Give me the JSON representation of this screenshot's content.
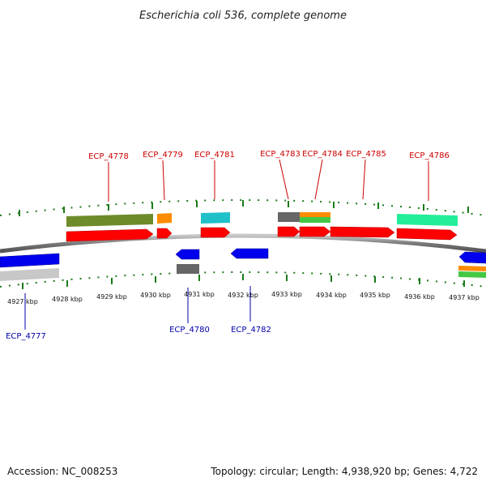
{
  "title": "Escherichia coli 536, complete genome",
  "footer": {
    "accession": "Accession: NC_008253",
    "summary": "Topology: circular; Length: 4,938,920 bp; Genes: 4,722"
  },
  "colors": {
    "forward_label": "#cc0000",
    "reverse_label": "#0000aa",
    "tick": "#1a7a1a",
    "backbone": "#8a8a8a"
  },
  "ruler": {
    "ticks": [
      {
        "label": "4927 kbp"
      },
      {
        "label": "4928 kbp"
      },
      {
        "label": "4929 kbp"
      },
      {
        "label": "4930 kbp"
      },
      {
        "label": "4931 kbp"
      },
      {
        "label": "4932 kbp"
      },
      {
        "label": "4933 kbp"
      },
      {
        "label": "4934 kbp"
      },
      {
        "label": "4935 kbp"
      },
      {
        "label": "4936 kbp"
      },
      {
        "label": "4937 kbp"
      }
    ]
  },
  "forward_labels": [
    "ECP_4778",
    "ECP_4779",
    "ECP_4781",
    "ECP_4783",
    "ECP_4784",
    "ECP_4785",
    "ECP_4786"
  ],
  "reverse_labels": [
    "ECP_4777",
    "ECP_4780",
    "ECP_4782"
  ]
}
